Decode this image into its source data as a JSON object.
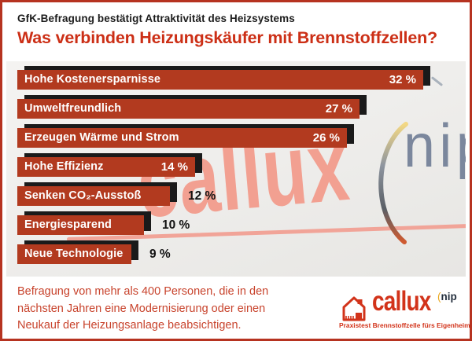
{
  "header": {
    "kicker": "GfK-Befragung bestätigt Attraktivität des Heizsystems",
    "title": "Was verbinden Heizungskäufer mit Brennstoffzellen?"
  },
  "chart_data": {
    "type": "bar",
    "orientation": "horizontal",
    "title": "Was verbinden Heizungskäufer mit Brennstoffzellen?",
    "categories": [
      "Hohe Kostenersparnisse",
      "Umweltfreundlich",
      "Erzeugen Wärme und Strom",
      "Hohe Effizienz",
      "Senken CO₂-Ausstoß",
      "Energiesparend",
      "Neue Technologie"
    ],
    "values": [
      32,
      27,
      26,
      14,
      12,
      10,
      9
    ],
    "unit": "%",
    "value_labels": [
      "32 %",
      "27 %",
      "26 %",
      "14 %",
      "12 %",
      "10 %",
      "9 %"
    ],
    "value_label_inside": [
      true,
      true,
      true,
      true,
      false,
      false,
      false
    ],
    "xlim": [
      0,
      35
    ],
    "grid": false,
    "legend": false,
    "bar_color": "#b23a1f",
    "shadow_color": "#1a1a1a",
    "label_color_inside": "#ffffff",
    "label_color_outside": "#111111"
  },
  "watermark": {
    "brand_text": "callux",
    "nip_text": "nip"
  },
  "footer": {
    "note_lines": {
      "0": "Befragung von mehr als 400 Personen, die in den",
      "1": "nächsten Jahren eine Modernisierung oder einen",
      "2": "Neukauf der Heizungsanlage beabsichtigen."
    },
    "logo": {
      "brand": "callux",
      "nip_paren": "(",
      "nip": "nip",
      "tagline": "Praxistest Brennstoffzelle fürs Eigenheim"
    }
  },
  "colors": {
    "frame_border": "#b63320",
    "title_red": "#cc2f16",
    "bar_red": "#b23a1f",
    "note_red": "#c8432c",
    "logo_red": "#d2331a",
    "watermark_salmon": "#f2a091",
    "nip_bluegray": "#7b879d"
  }
}
